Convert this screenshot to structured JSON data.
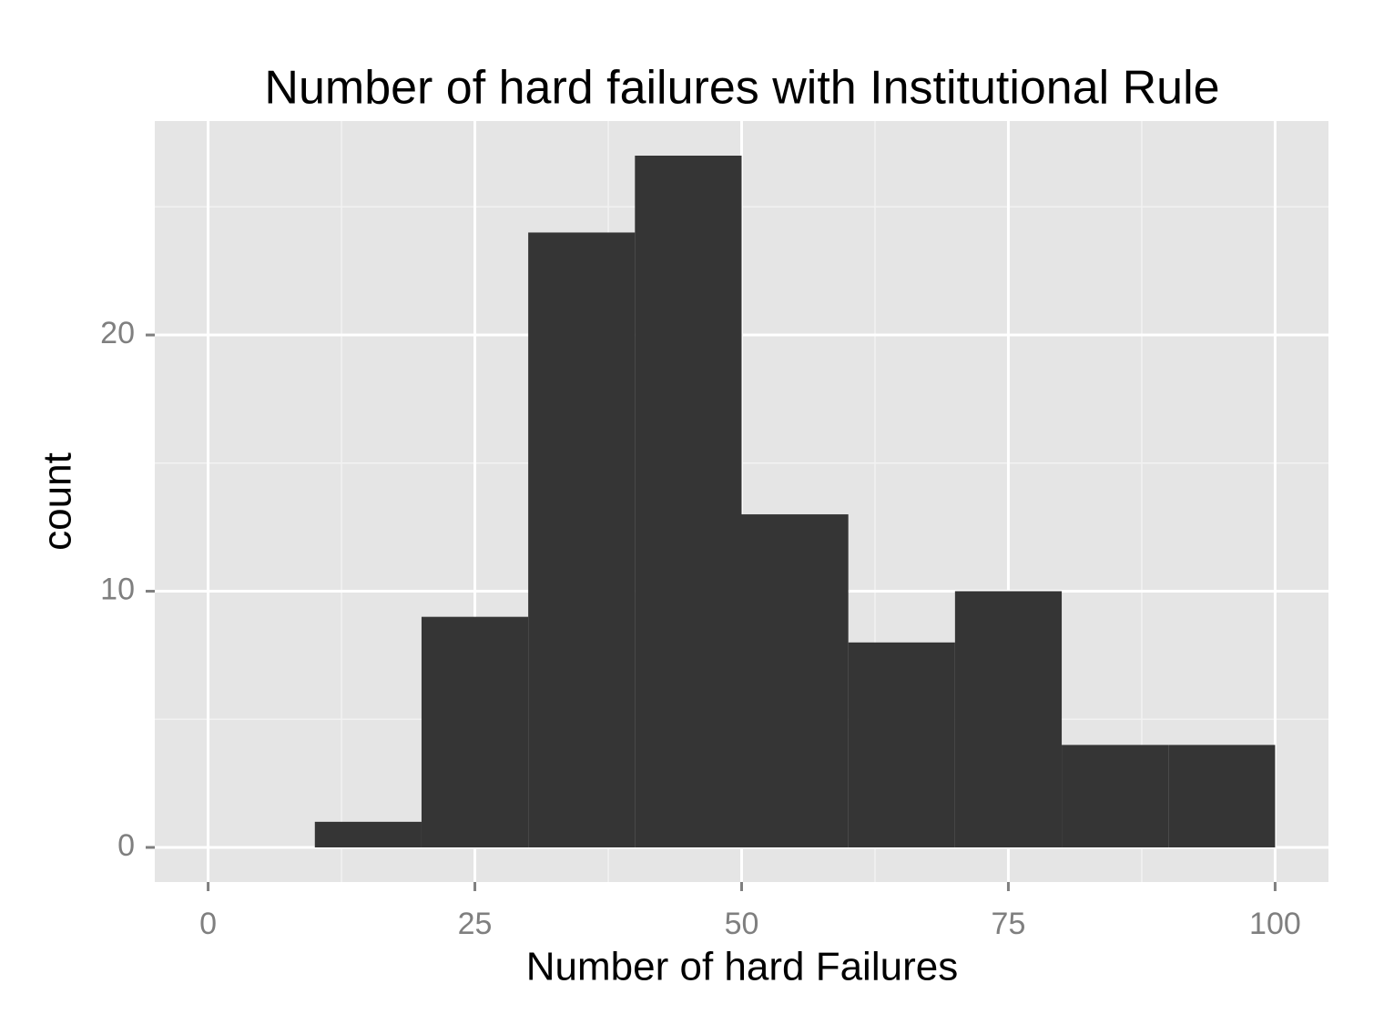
{
  "chart_data": {
    "type": "histogram",
    "title": "Number of hard failures with Institutional Rule",
    "x_label": "Number of hard Failures",
    "y_label": "count",
    "bins": [
      0,
      10,
      20,
      30,
      40,
      50,
      60,
      70,
      80,
      90,
      100
    ],
    "values": [
      0,
      1,
      9,
      24,
      27,
      13,
      8,
      10,
      4,
      4
    ],
    "color": "#353535",
    "xlim": [
      -5,
      105
    ],
    "ylim": [
      -1.35,
      28.35
    ],
    "xticks": [
      0,
      25,
      50,
      75,
      100
    ],
    "yticks": [
      0,
      10,
      20
    ],
    "xminorticks": [
      12.5,
      37.5,
      62.5,
      87.5
    ],
    "yminorticks": [
      5,
      15,
      25
    ],
    "grid": true
  }
}
